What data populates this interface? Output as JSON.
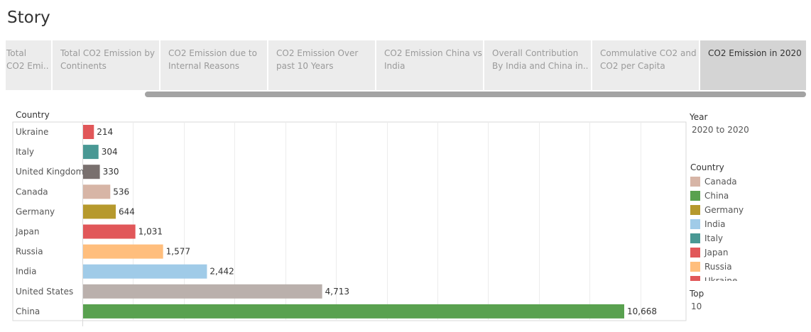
{
  "story": {
    "title": "Story"
  },
  "tabs": [
    {
      "line1": "Total",
      "line2": "CO2 Emi..",
      "active": false
    },
    {
      "line1": "Total CO2 Emission by",
      "line2": "Continents",
      "active": false
    },
    {
      "line1": "CO2 Emission due to",
      "line2": "Internal Reasons",
      "active": false
    },
    {
      "line1": "CO2 Emission Over",
      "line2": "past 10 Years",
      "active": false
    },
    {
      "line1": "CO2 Emission China vs",
      "line2": "India",
      "active": false
    },
    {
      "line1": "Overall Contribution",
      "line2": "By India  and China  in..",
      "active": false
    },
    {
      "line1": "Commulative CO2 and",
      "line2": "CO2 per Capita",
      "active": false
    },
    {
      "line1": "CO2 Emission in 2020",
      "line2": "",
      "active": true
    }
  ],
  "filters": {
    "year_label": "Year",
    "year_value": "2020 to 2020",
    "country_label": "Country",
    "top_label": "Top",
    "top_value": "10"
  },
  "legend": [
    {
      "name": "Canada",
      "color": "#d7b5a6"
    },
    {
      "name": "China",
      "color": "#59a14f"
    },
    {
      "name": "Germany",
      "color": "#b6992d"
    },
    {
      "name": "India",
      "color": "#a0cbe8"
    },
    {
      "name": "Italy",
      "color": "#499894"
    },
    {
      "name": "Japan",
      "color": "#e15759"
    },
    {
      "name": "Russia",
      "color": "#ffbe7d"
    },
    {
      "name": "Ukraine",
      "color": "#e15759"
    }
  ],
  "chart_data": {
    "type": "bar",
    "orientation": "horizontal",
    "row_header": "Country",
    "categories": [
      "Ukraine",
      "Italy",
      "United Kingdom",
      "Canada",
      "Germany",
      "Japan",
      "Russia",
      "India",
      "United States",
      "China"
    ],
    "values": [
      214,
      304,
      330,
      536,
      644,
      1031,
      1577,
      2442,
      4713,
      10668
    ],
    "value_labels": [
      "214",
      "304",
      "330",
      "536",
      "644",
      "1,031",
      "1,577",
      "2,442",
      "4,713",
      "10,668"
    ],
    "colors": [
      "#e15759",
      "#499894",
      "#79706e",
      "#d7b5a6",
      "#b6992d",
      "#e15759",
      "#ffbe7d",
      "#a0cbe8",
      "#bab0ac",
      "#59a14f"
    ],
    "xlim": [
      0,
      11900
    ],
    "grid": true,
    "legend_position": "right"
  }
}
